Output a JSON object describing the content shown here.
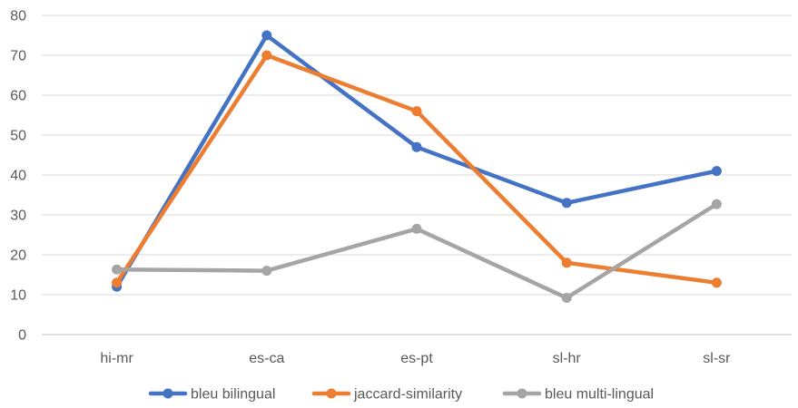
{
  "chart_data": {
    "type": "line",
    "title": "",
    "xlabel": "",
    "ylabel": "",
    "categories": [
      "hi-mr",
      "es-ca",
      "es-pt",
      "sl-hr",
      "sl-sr"
    ],
    "ylim": [
      0,
      80
    ],
    "yticks": [
      0,
      10,
      20,
      30,
      40,
      50,
      60,
      70,
      80
    ],
    "grid": true,
    "legend_position": "bottom",
    "series": [
      {
        "name": "bleu bilingual",
        "color": "#4472C4",
        "values": [
          12,
          75,
          47,
          33,
          41
        ]
      },
      {
        "name": "jaccard-similarity",
        "color": "#ED7D31",
        "values": [
          13,
          70,
          56,
          18,
          13
        ]
      },
      {
        "name": "bleu multi-lingual",
        "color": "#A5A5A5",
        "values": [
          16.3,
          16,
          26.5,
          9.2,
          32.7
        ]
      }
    ]
  }
}
